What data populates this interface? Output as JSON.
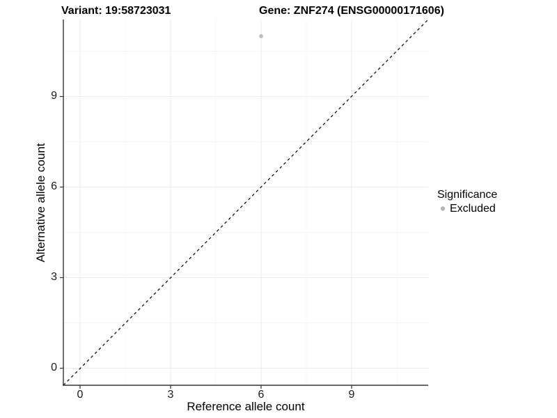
{
  "titles": {
    "variant": "Variant: 19:58723031",
    "gene": "Gene: ZNF274 (ENSG00000171606)"
  },
  "axes": {
    "x": {
      "label": "Reference allele count",
      "ticks": [
        "0",
        "3",
        "6",
        "9"
      ]
    },
    "y": {
      "label": "Alternative allele count",
      "ticks": [
        "0",
        "3",
        "6",
        "9"
      ]
    }
  },
  "legend": {
    "title": "Significance",
    "items": [
      {
        "label": "Excluded",
        "color": "#b5b5b5"
      }
    ]
  },
  "colors": {
    "point": "#bebebe",
    "axis_line": "#333333",
    "grid_major": "#ebebeb",
    "grid_minor": "#f5f5f5",
    "reference_line": "#000000"
  },
  "chart_data": {
    "type": "scatter",
    "title_left": "Variant: 19:58723031",
    "title_right": "Gene: ZNF274 (ENSG00000171606)",
    "xlabel": "Reference allele count",
    "ylabel": "Alternative allele count",
    "xlim": [
      -0.55,
      11.55
    ],
    "ylim": [
      -0.55,
      11.55
    ],
    "x_ticks": [
      0,
      3,
      6,
      9
    ],
    "y_ticks": [
      0,
      3,
      6,
      9
    ],
    "grid": true,
    "points": [
      {
        "x": 6,
        "y": 11,
        "series": "Excluded",
        "color": "#bebebe"
      }
    ],
    "reference_line": {
      "type": "identity",
      "slope": 1,
      "intercept": 0,
      "style": "dashed",
      "color": "#000000"
    },
    "legend": {
      "title": "Significance",
      "position": "right",
      "entries": [
        "Excluded"
      ]
    }
  }
}
